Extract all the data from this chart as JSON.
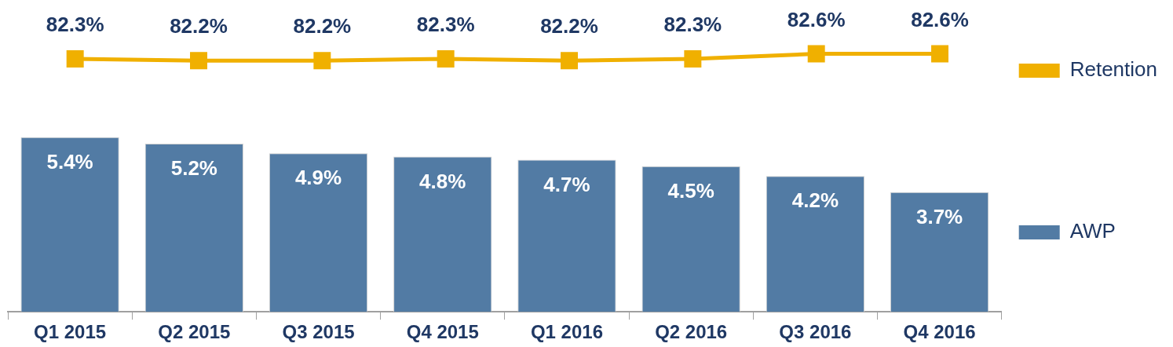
{
  "chart_data": [
    {
      "type": "line",
      "categories": [
        null,
        null,
        null,
        null,
        null,
        null,
        null,
        null
      ],
      "series": [
        {
          "name": "Retention",
          "color": "#f0b000",
          "values": [
            82.3,
            82.2,
            82.2,
            82.3,
            82.2,
            82.3,
            82.6,
            82.6
          ],
          "value_labels": [
            "82.3%",
            "82.2%",
            "82.2%",
            "82.3%",
            "82.2%",
            "82.3%",
            "82.6%",
            "82.6%"
          ]
        }
      ],
      "marker": "square",
      "legend": "right",
      "tick_labels": false
    },
    {
      "type": "bar",
      "categories": [
        "Q1 2015",
        "Q2 2015",
        "Q3 2015",
        "Q4 2015",
        "Q1 2016",
        "Q2 2016",
        "Q3 2016",
        "Q4 2016"
      ],
      "series": [
        {
          "name": "AWP",
          "color": "#527ba4",
          "values": [
            5.4,
            5.2,
            4.9,
            4.8,
            4.7,
            4.5,
            4.2,
            3.7
          ],
          "value_labels": [
            "5.4%",
            "5.2%",
            "4.9%",
            "4.8%",
            "4.7%",
            "4.5%",
            "4.2%",
            "3.7%"
          ]
        }
      ],
      "legend": "right",
      "tick_labels": "x"
    }
  ]
}
